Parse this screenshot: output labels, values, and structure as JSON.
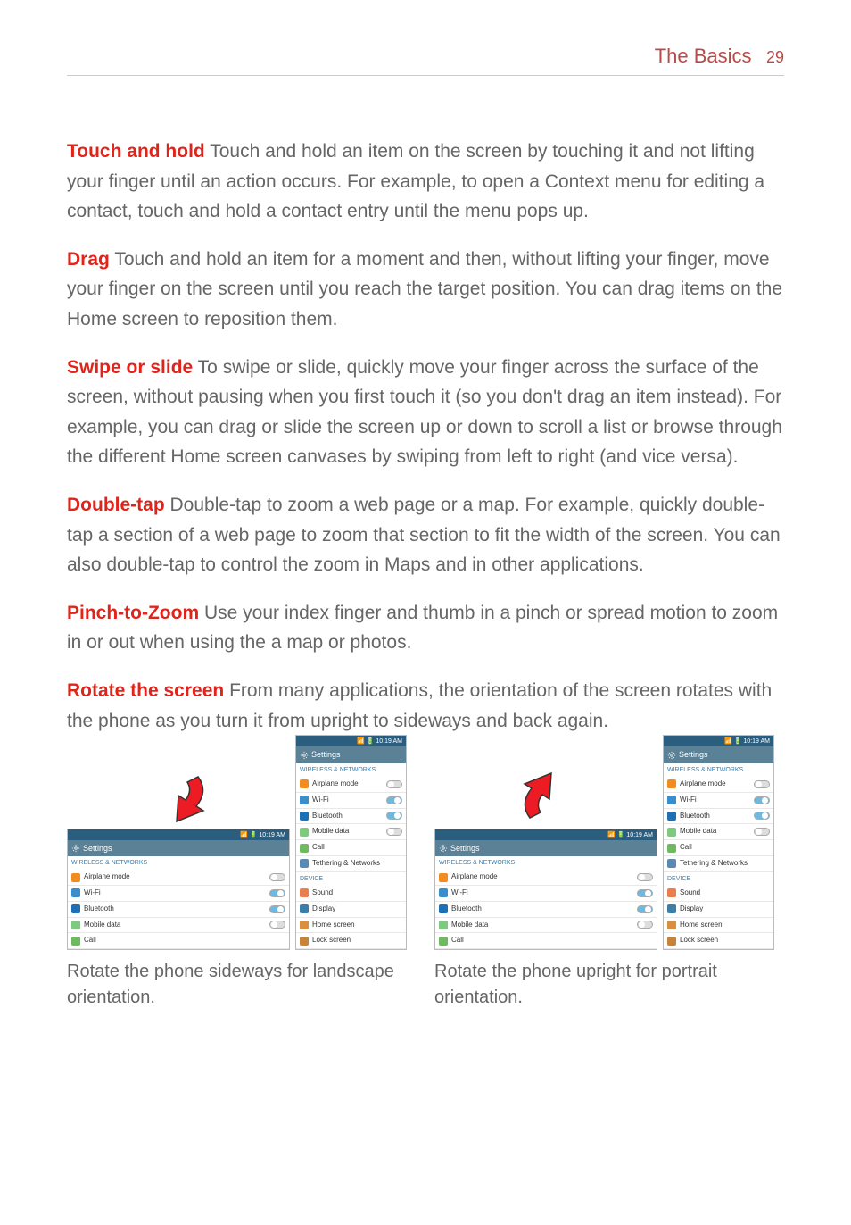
{
  "header": {
    "section": "The Basics",
    "page": "29"
  },
  "paragraphs": [
    {
      "term": "Touch and hold",
      "body": "Touch and hold an item on the screen by touching it and not lifting your finger until an action occurs. For example, to open a Context menu for editing a contact, touch and hold a contact entry until the menu pops up."
    },
    {
      "term": "Drag",
      "body": "Touch and hold an item for a moment and then, without lifting your finger, move your finger on the screen until you reach the target position. You can drag items on the Home screen to reposition them."
    },
    {
      "term": "Swipe or slide",
      "body": "To swipe or slide, quickly move your finger across the surface of the screen, without pausing when you first touch it (so you don't drag an item instead). For example, you can drag or slide the screen up or down to scroll a list or browse through the different Home screen canvases by swiping from left to right (and vice versa)."
    },
    {
      "term": "Double-tap",
      "body": "Double-tap to zoom a web page or a map. For example, quickly double-tap a section of a web page to zoom that section to fit the width of the screen. You can also double-tap to control the zoom in Maps and in other applications."
    },
    {
      "term": "Pinch-to-Zoom",
      "body": "Use your index finger and thumb in a pinch or spread motion to zoom in or out when using the a map or photos."
    },
    {
      "term": "Rotate the screen",
      "body": "From many applications, the orientation of the screen rotates with the phone as you turn it from upright to sideways and back again."
    }
  ],
  "colors": {
    "term_color": "#e2231a",
    "header_color": "#b94a48",
    "link_blue": "#2e7fb8",
    "statusbar_bg": "#2b5d7f",
    "titlebar_bg": "#5b8196",
    "arrow_fill": "#ed1c24",
    "arrow_outline": "#333333"
  },
  "screenshots": {
    "status_time": "10:19 AM",
    "status_icons": "📶 📡 🔋",
    "title": "Settings",
    "section_wireless": "WIRELESS & NETWORKS",
    "section_device": "DEVICE",
    "items_wireless": [
      {
        "icon_bg": "#f28c1f",
        "label": "Airplane mode",
        "toggle": "off"
      },
      {
        "icon_bg": "#3b8ecc",
        "label": "Wi-Fi",
        "toggle": "on"
      },
      {
        "icon_bg": "#1f6fb5",
        "label": "Bluetooth",
        "toggle": "on"
      },
      {
        "icon_bg": "#7fc97f",
        "label": "Mobile data",
        "toggle": "off"
      },
      {
        "icon_bg": "#6fb960",
        "label": "Call",
        "toggle": null
      },
      {
        "icon_bg": "#5b89b4",
        "label": "Tethering & Networks",
        "toggle": null
      }
    ],
    "items_device": [
      {
        "icon_bg": "#e97e4f",
        "label": "Sound"
      },
      {
        "icon_bg": "#3b7fa8",
        "label": "Display"
      },
      {
        "icon_bg": "#d98f3f",
        "label": "Home screen"
      },
      {
        "icon_bg": "#c7833a",
        "label": "Lock screen"
      }
    ]
  },
  "captions": {
    "left": "Rotate the phone sideways for landscape orientation.",
    "right": "Rotate the phone upright for portrait orientation."
  }
}
